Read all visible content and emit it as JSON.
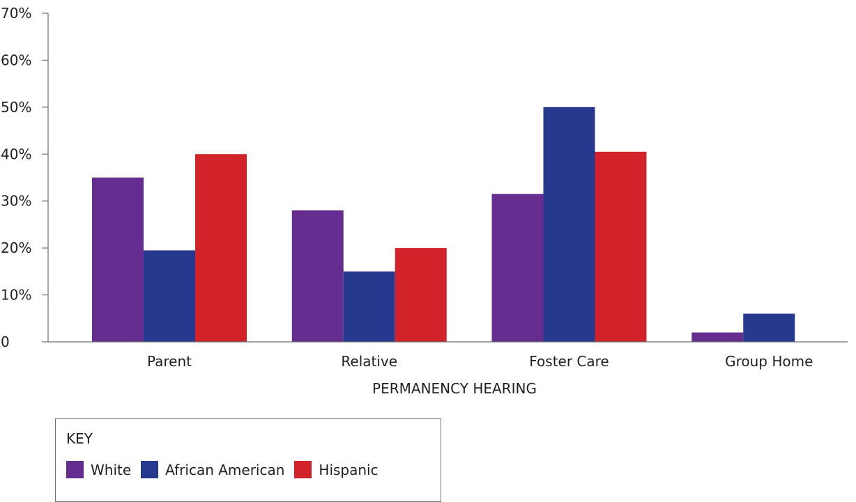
{
  "chart_data": {
    "type": "bar",
    "categories": [
      "Parent",
      "Relative",
      "Foster Care",
      "Group Home"
    ],
    "series": [
      {
        "name": "White",
        "color": "#652d90",
        "values": [
          35,
          28,
          31.5,
          2
        ]
      },
      {
        "name": "African American",
        "color": "#27398f",
        "values": [
          19.5,
          15,
          50,
          6
        ]
      },
      {
        "name": "Hispanic",
        "color": "#d2232a",
        "values": [
          40,
          20,
          40.5,
          0
        ]
      }
    ],
    "xlabel": "PERMANENCY HEARING",
    "ylabel": "",
    "ylim": [
      0,
      70
    ],
    "yticks": [
      0,
      10,
      20,
      30,
      40,
      50,
      60,
      70
    ],
    "ytick_labels": [
      "0",
      "10%",
      "20%",
      "30%",
      "40%",
      "50%",
      "60%",
      "70%"
    ],
    "grid": false,
    "legend": {
      "title": "KEY",
      "position": "bottom-left"
    }
  }
}
